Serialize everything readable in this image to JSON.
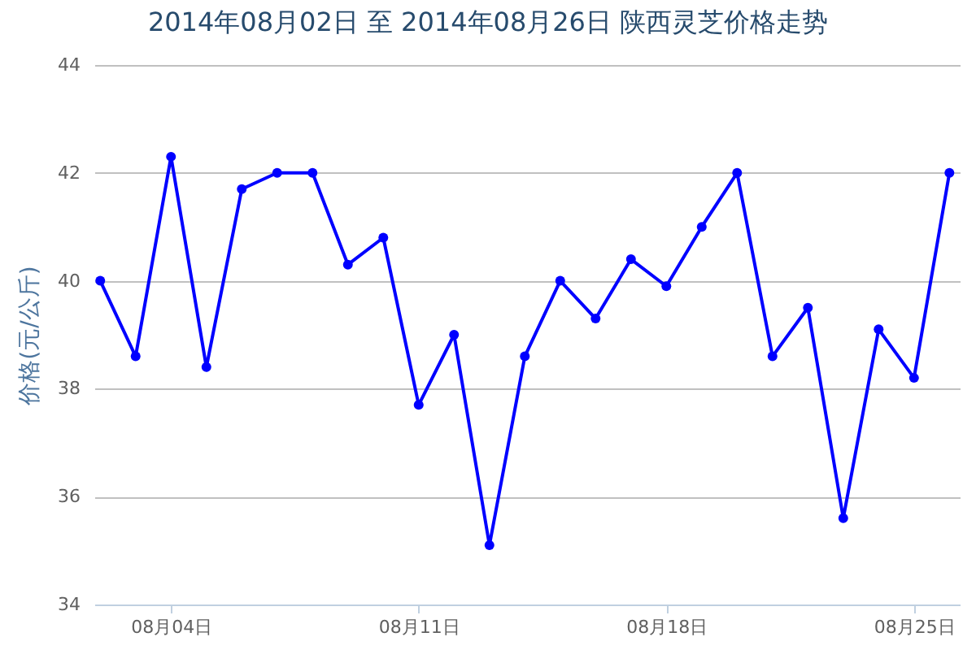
{
  "chart_data": {
    "type": "line",
    "title": "2014年08月02日 至 2014年08月26日 陕西灵芝价格走势",
    "ylabel": "价格(元/公斤)",
    "x": [
      "2014-08-02",
      "2014-08-03",
      "2014-08-04",
      "2014-08-05",
      "2014-08-06",
      "2014-08-07",
      "2014-08-08",
      "2014-08-09",
      "2014-08-10",
      "2014-08-11",
      "2014-08-12",
      "2014-08-13",
      "2014-08-14",
      "2014-08-15",
      "2014-08-16",
      "2014-08-17",
      "2014-08-18",
      "2014-08-19",
      "2014-08-20",
      "2014-08-21",
      "2014-08-22",
      "2014-08-23",
      "2014-08-24",
      "2014-08-25",
      "2014-08-26"
    ],
    "series": [
      {
        "color": "#0000ff",
        "values": [
          40.0,
          38.6,
          42.3,
          38.4,
          41.7,
          42.0,
          42.0,
          40.3,
          40.8,
          37.7,
          39.0,
          35.1,
          38.6,
          40.0,
          39.3,
          40.4,
          39.9,
          41.0,
          42.0,
          38.6,
          39.5,
          35.6,
          39.1,
          38.2,
          42.0
        ]
      }
    ],
    "xlim": [
      "2014-08-01T20:00",
      "2014-08-26T07:00"
    ],
    "xticks": [
      {
        "value": "2014-08-04",
        "label": "08月04日"
      },
      {
        "value": "2014-08-11",
        "label": "08月11日"
      },
      {
        "value": "2014-08-18",
        "label": "08月18日"
      },
      {
        "value": "2014-08-25",
        "label": "08月25日"
      }
    ],
    "ylim": [
      34,
      44
    ],
    "yticks": [
      34,
      36,
      38,
      40,
      42,
      44
    ],
    "grid": "y",
    "marker": "circle",
    "line_style": "solid"
  }
}
